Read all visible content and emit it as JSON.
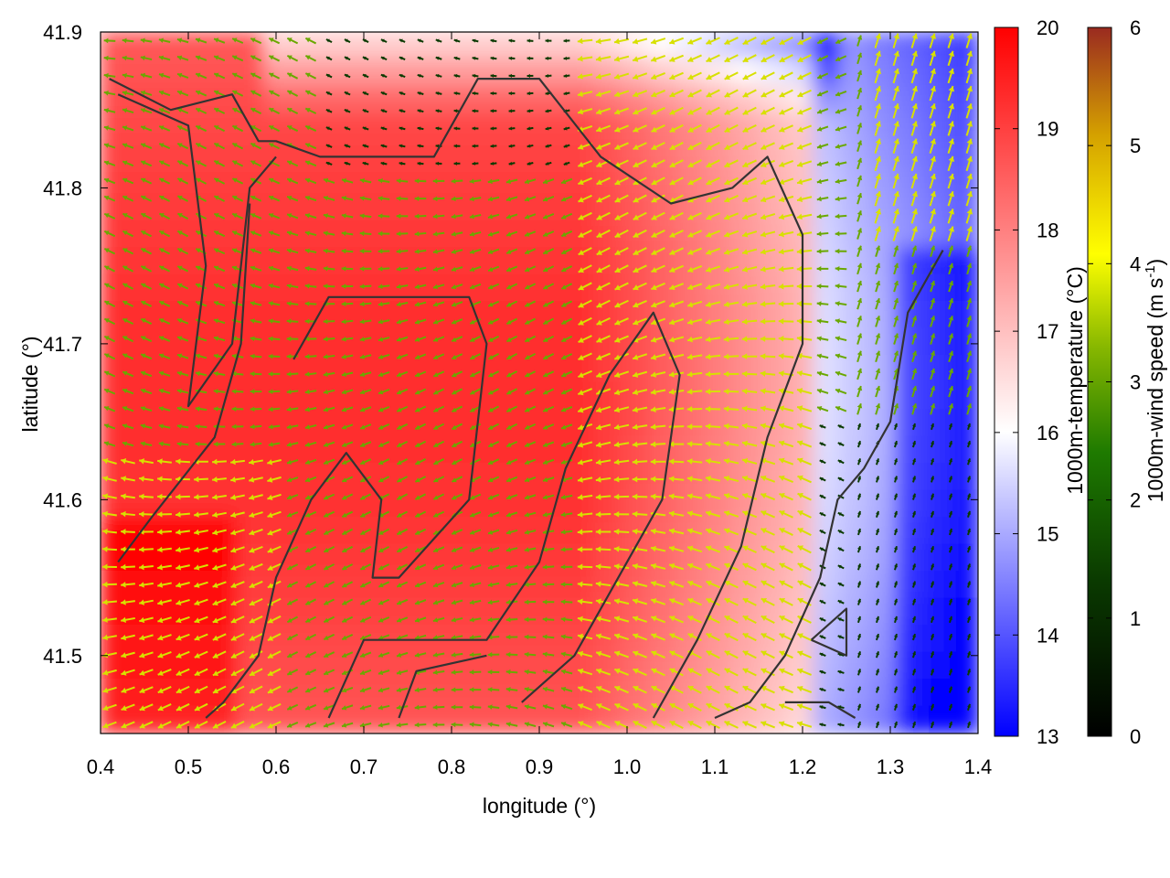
{
  "chart_data": {
    "type": "heatmap",
    "title": "",
    "xlabel": "longitude (°)",
    "ylabel": "latitude (°)",
    "xlim": [
      0.4,
      1.4
    ],
    "ylim": [
      41.45,
      41.9
    ],
    "x_ticks": [
      "0.4",
      "0.5",
      "0.6",
      "0.7",
      "0.8",
      "0.9",
      "1.0",
      "1.1",
      "1.2",
      "1.3",
      "1.4"
    ],
    "y_ticks": [
      "41.5",
      "41.6",
      "41.7",
      "41.8",
      "41.9"
    ],
    "grid": false,
    "layers": [
      "temperature color field",
      "wind vector arrows colored by speed",
      "dark contour lines"
    ],
    "temperature_colorbar": {
      "label": "1000m-temperature (°C)",
      "range": [
        13,
        20
      ],
      "ticks": [
        "13",
        "14",
        "15",
        "16",
        "17",
        "18",
        "19",
        "20"
      ],
      "colors": [
        "#0000ff",
        "#ffffff",
        "#ff0000"
      ]
    },
    "wind_colorbar": {
      "label": "1000m-wind speed (m s",
      "label_superscript": "-1",
      "label_suffix": ")",
      "range": [
        0,
        6
      ],
      "ticks": [
        "0",
        "1",
        "2",
        "3",
        "4",
        "5",
        "6"
      ],
      "colors": [
        "#000000",
        "#005500",
        "#55aa00",
        "#ffff00",
        "#d4a000",
        "#a03020"
      ]
    }
  }
}
